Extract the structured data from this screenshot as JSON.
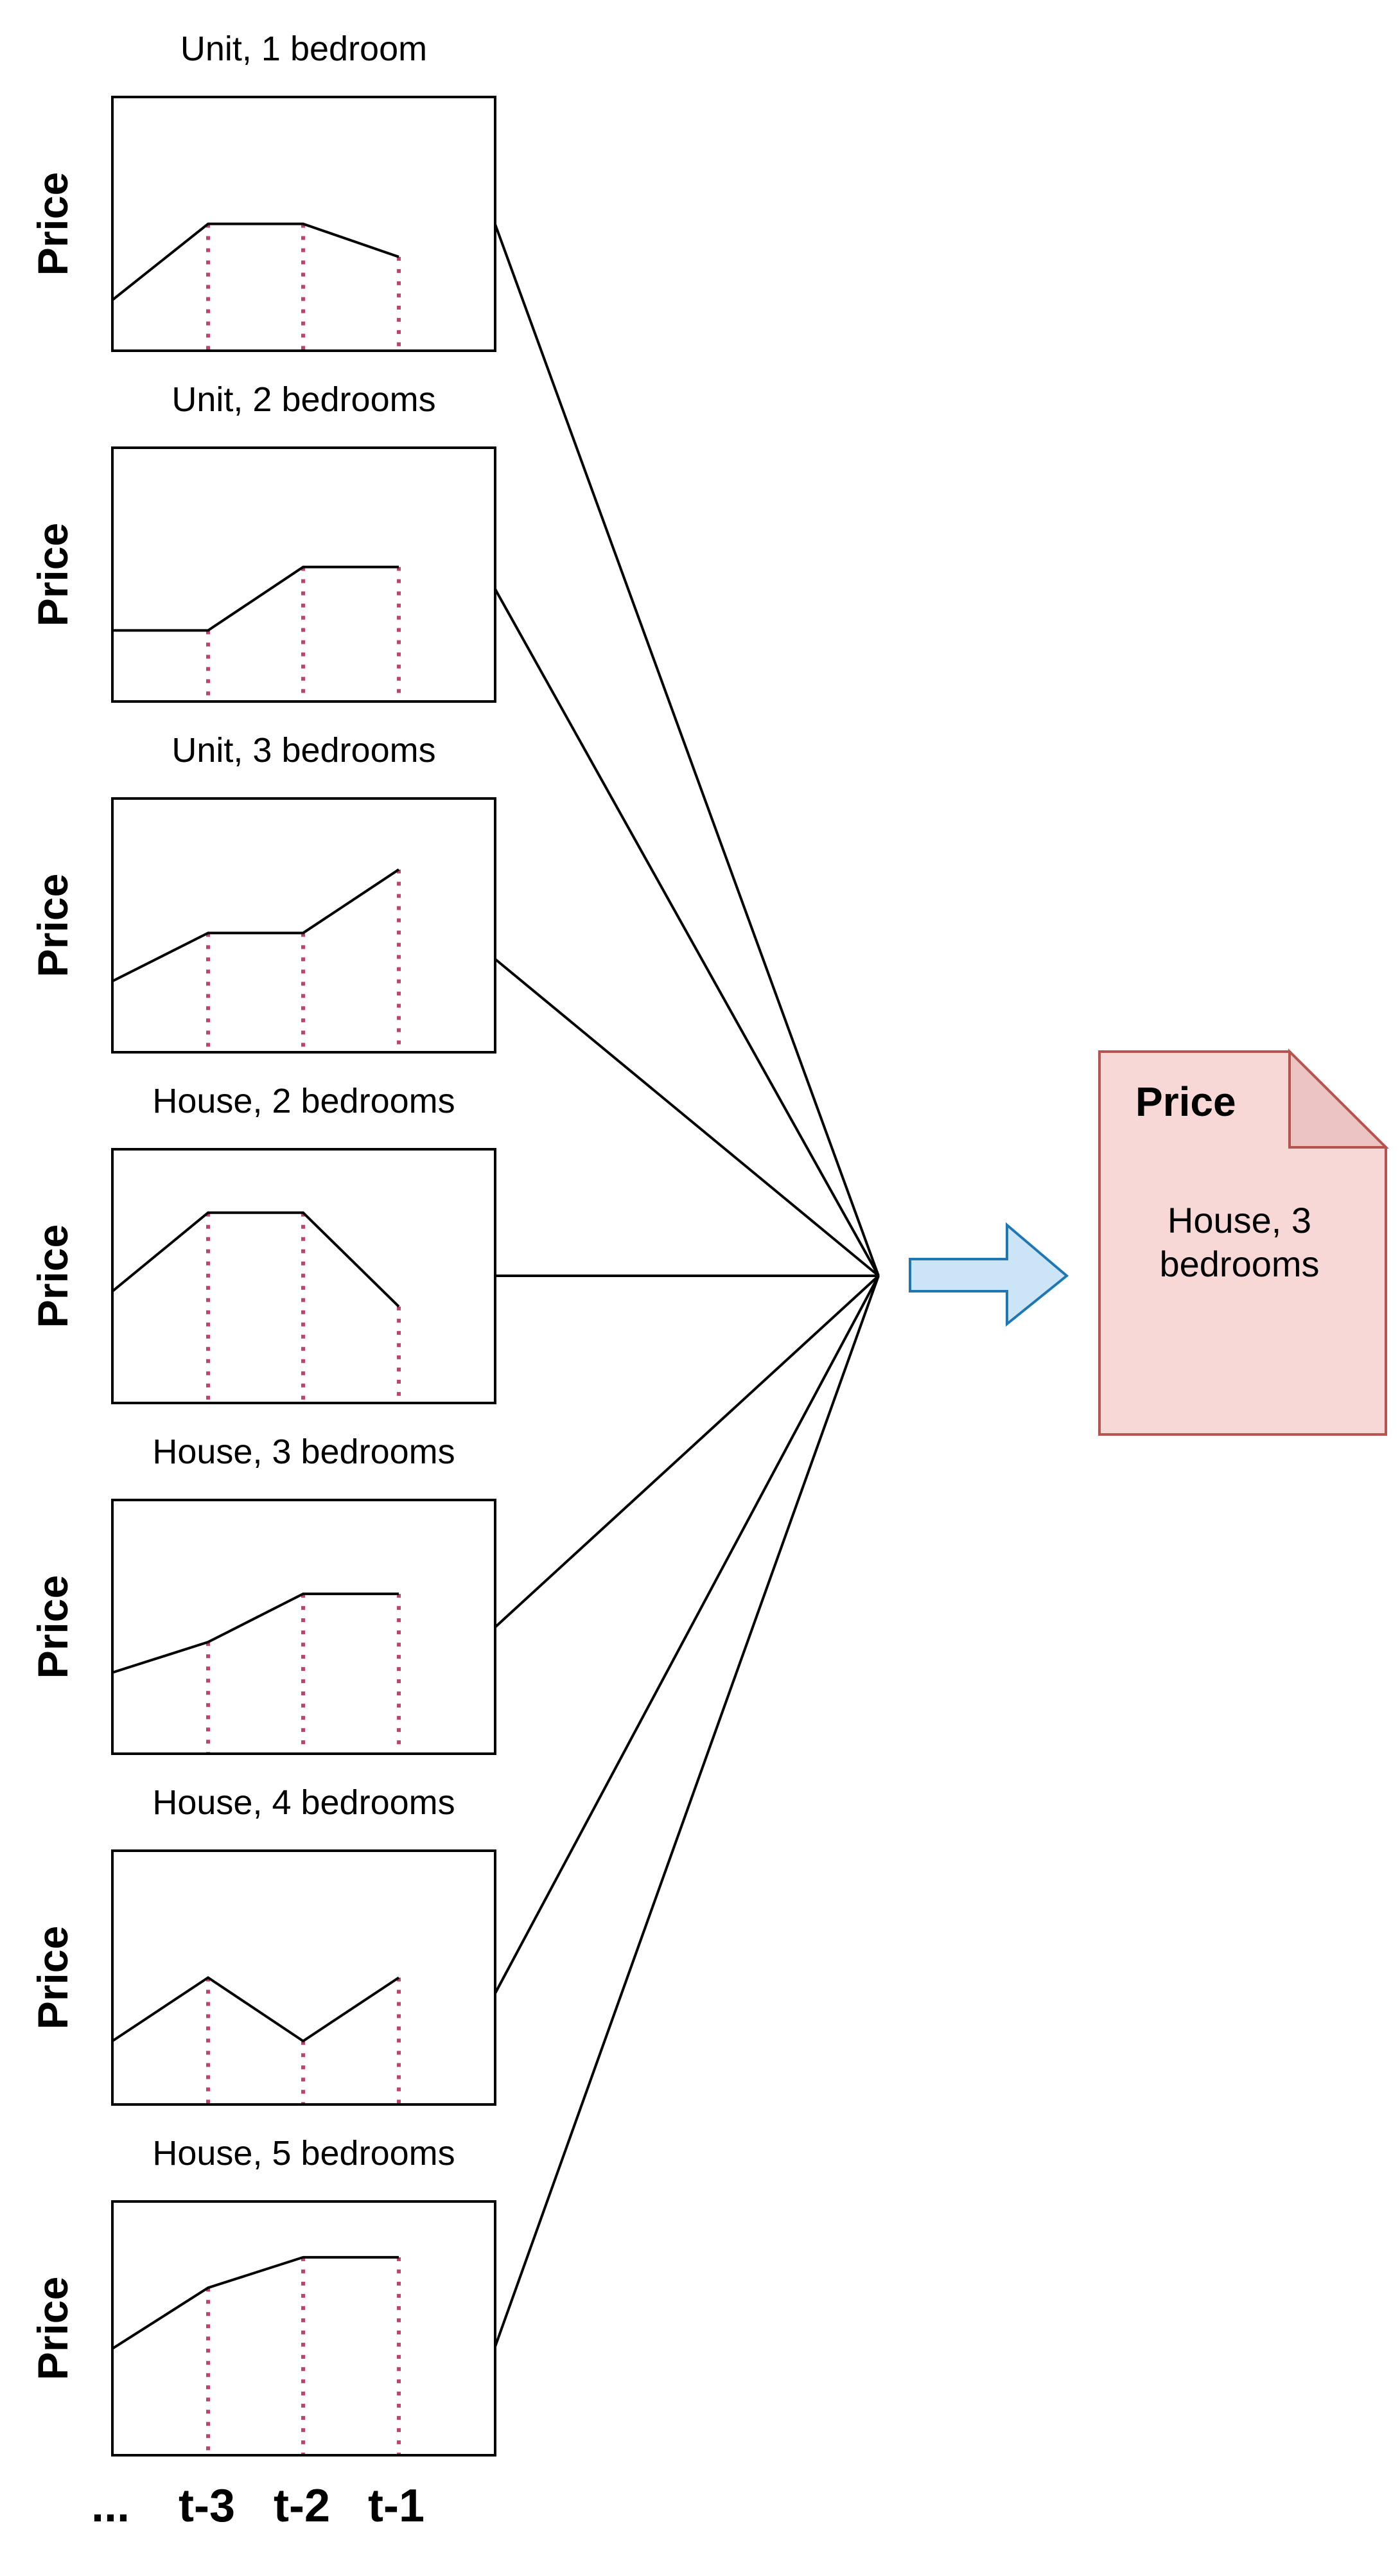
{
  "diagram": {
    "y_axis_label": "Price",
    "x_tick_labels": [
      "...",
      "t-3",
      "t-2",
      "t-1"
    ],
    "panels": [
      {
        "title": "Unit, 1 bedroom",
        "values": [
          0.2,
          0.5,
          0.5,
          0.37
        ]
      },
      {
        "title": "Unit, 2 bedrooms",
        "values": [
          0.28,
          0.28,
          0.53,
          0.53
        ]
      },
      {
        "title": "Unit, 3 bedrooms",
        "values": [
          0.28,
          0.47,
          0.47,
          0.72
        ]
      },
      {
        "title": "House, 2 bedrooms",
        "values": [
          0.44,
          0.75,
          0.75,
          0.38
        ]
      },
      {
        "title": "House, 3 bedrooms",
        "values": [
          0.32,
          0.44,
          0.63,
          0.63
        ]
      },
      {
        "title": "House, 4 bedrooms",
        "values": [
          0.25,
          0.5,
          0.25,
          0.5
        ]
      },
      {
        "title": "House, 5 bedrooms",
        "values": [
          0.42,
          0.66,
          0.78,
          0.78
        ]
      }
    ],
    "output": {
      "label": "Price",
      "lines": [
        "House, 3",
        "bedrooms"
      ],
      "fill_color": "#f8d7d7",
      "border_color": "#b85450"
    },
    "arrow": {
      "fill_color": "#cce5f6",
      "border_color": "#1f77b4"
    },
    "marker_color": "#c0426e"
  }
}
